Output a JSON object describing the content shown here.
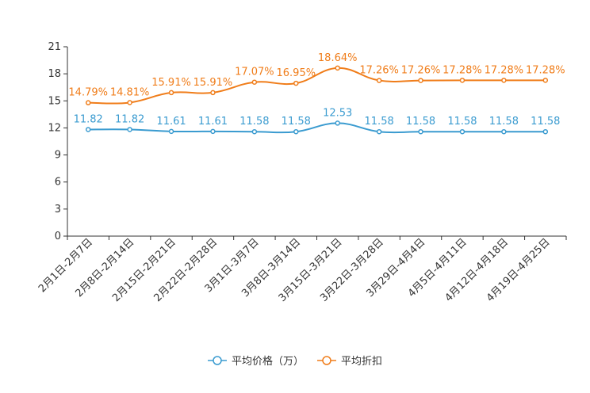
{
  "chart_data": {
    "type": "line",
    "title": "",
    "xlabel": "",
    "ylabel": "",
    "ylim": [
      0,
      21
    ],
    "yticks": [
      0,
      3,
      6,
      9,
      12,
      15,
      18,
      21
    ],
    "grid": false,
    "legend_position": "bottom-center",
    "categories": [
      "2月1日-2月7日",
      "2月8日-2月14日",
      "2月15日-2月21日",
      "2月22日-2月28日",
      "3月1日-3月7日",
      "3月8日-3月14日",
      "3月15日-3月21日",
      "3月22日-3月28日",
      "3月29日-4月4日",
      "4月5日-4月11日",
      "4月12日-4月18日",
      "4月19日-4月25日"
    ],
    "series": [
      {
        "name": "平均价格（万）",
        "color": "#3a9bd0",
        "values": [
          11.82,
          11.82,
          11.61,
          11.61,
          11.58,
          11.58,
          12.53,
          11.58,
          11.58,
          11.58,
          11.58,
          11.58
        ],
        "labels": [
          "11.82",
          "11.82",
          "11.61",
          "11.61",
          "11.58",
          "11.58",
          "12.53",
          "11.58",
          "11.58",
          "11.58",
          "11.58",
          "11.58"
        ]
      },
      {
        "name": "平均折扣",
        "color": "#f07d1a",
        "values": [
          14.79,
          14.81,
          15.91,
          15.91,
          17.07,
          16.95,
          18.64,
          17.26,
          17.26,
          17.28,
          17.28,
          17.28
        ],
        "labels": [
          "14.79%",
          "14.81%",
          "15.91%",
          "15.91%",
          "17.07%",
          "16.95%",
          "18.64%",
          "17.26%",
          "17.26%",
          "17.28%",
          "17.28%",
          "17.28%"
        ]
      }
    ]
  }
}
